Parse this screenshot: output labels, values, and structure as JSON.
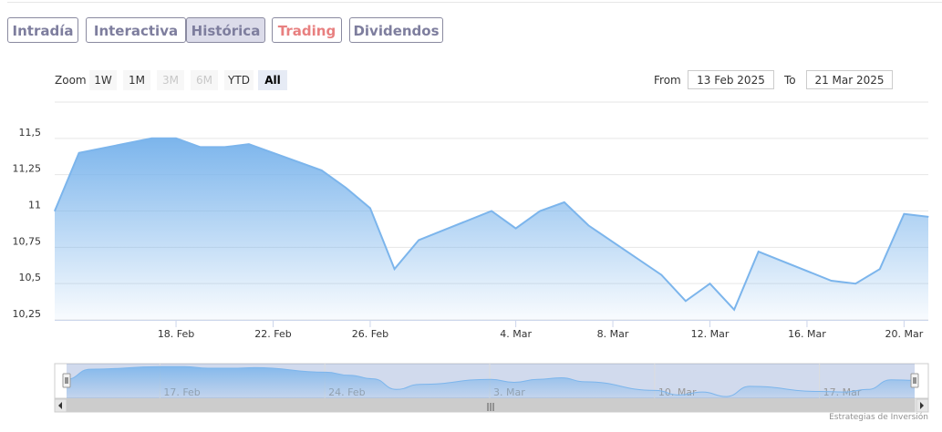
{
  "tabs": [
    {
      "label": "Intradía"
    },
    {
      "label": "Interactiva"
    },
    {
      "label": "Histórica",
      "selected": true
    },
    {
      "label": "Trading",
      "color": "#e88080"
    },
    {
      "label": "Dividendos"
    }
  ],
  "rangeSelector": {
    "zoom_label": "Zoom",
    "buttons": [
      {
        "label": "1W",
        "state": "enabled"
      },
      {
        "label": "1M",
        "state": "enabled"
      },
      {
        "label": "3M",
        "state": "disabled"
      },
      {
        "label": "6M",
        "state": "disabled"
      },
      {
        "label": "YTD",
        "state": "enabled"
      },
      {
        "label": "All",
        "state": "selected"
      }
    ],
    "from_label": "From",
    "from_value": "13 Feb 2025",
    "to_label": "To",
    "to_value": "21 Mar 2025"
  },
  "chart_data": {
    "type": "area",
    "x": [
      "2025-02-13",
      "2025-02-14",
      "2025-02-17",
      "2025-02-18",
      "2025-02-19",
      "2025-02-20",
      "2025-02-21",
      "2025-02-24",
      "2025-02-25",
      "2025-02-26",
      "2025-02-27",
      "2025-02-28",
      "2025-03-03",
      "2025-03-04",
      "2025-03-05",
      "2025-03-06",
      "2025-03-07",
      "2025-03-10",
      "2025-03-11",
      "2025-03-12",
      "2025-03-13",
      "2025-03-14",
      "2025-03-17",
      "2025-03-18",
      "2025-03-19",
      "2025-03-20",
      "2025-03-21"
    ],
    "series": [
      {
        "values": [
          11.0,
          11.4,
          11.5,
          11.5,
          11.44,
          11.44,
          11.46,
          11.28,
          11.16,
          11.02,
          10.6,
          10.8,
          11.0,
          10.88,
          11.0,
          11.06,
          10.9,
          10.56,
          10.38,
          10.5,
          10.32,
          10.72,
          10.52,
          10.5,
          10.6,
          10.98,
          10.96
        ]
      }
    ],
    "yticks": [
      "10,25",
      "10,5",
      "10,75",
      "11",
      "11,25",
      "11,5"
    ],
    "ylim": [
      10.25,
      11.75
    ],
    "xticks": [
      {
        "label": "18. Feb",
        "date": "2025-02-18"
      },
      {
        "label": "22. Feb",
        "date": "2025-02-22"
      },
      {
        "label": "26. Feb",
        "date": "2025-02-26"
      },
      {
        "label": "4. Mar",
        "date": "2025-03-04"
      },
      {
        "label": "8. Mar",
        "date": "2025-03-08"
      },
      {
        "label": "12. Mar",
        "date": "2025-03-12"
      },
      {
        "label": "16. Mar",
        "date": "2025-03-16"
      },
      {
        "label": "20. Mar",
        "date": "2025-03-20"
      }
    ],
    "navigator_ticks": [
      {
        "label": "17. Feb",
        "date": "2025-02-17"
      },
      {
        "label": "24. Feb",
        "date": "2025-02-24"
      },
      {
        "label": "3. Mar",
        "date": "2025-03-03"
      },
      {
        "label": "10. Mar",
        "date": "2025-03-10"
      },
      {
        "label": "17. Mar",
        "date": "2025-03-17"
      }
    ],
    "grid": true,
    "line_color": "#7cb5ec"
  },
  "credit": "Estrategias de Inversión",
  "scrollbar": {
    "grip": "|||"
  }
}
